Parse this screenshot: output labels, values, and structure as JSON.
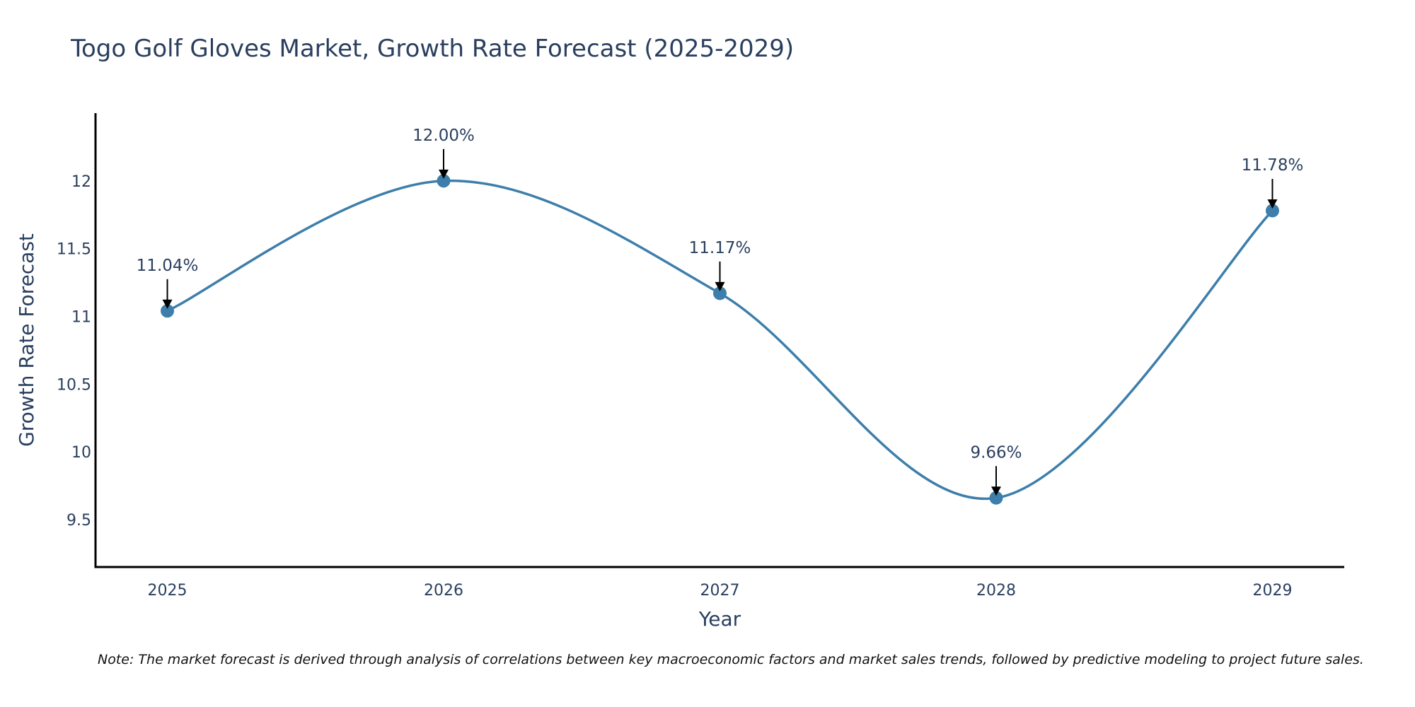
{
  "chart_data": {
    "type": "line",
    "title": "Togo Golf Gloves Market, Growth Rate Forecast (2025-2029)",
    "xlabel": "Year",
    "ylabel": "Growth Rate Forecast",
    "categories": [
      "2025",
      "2026",
      "2027",
      "2028",
      "2029"
    ],
    "series": [
      {
        "name": "Growth Rate Forecast",
        "values": [
          11.04,
          12.0,
          11.17,
          9.66,
          11.78
        ],
        "labels": [
          "11.04%",
          "12.00%",
          "11.17%",
          "9.66%",
          "11.78%"
        ],
        "color": "#3d7eab"
      }
    ],
    "yticks": [
      9.5,
      10,
      10.5,
      11,
      11.5,
      12
    ],
    "ytick_labels": [
      "9.5",
      "10",
      "10.5",
      "11",
      "11.5",
      "12"
    ],
    "ylim": [
      9.15,
      12.5
    ],
    "xlim": [
      -0.26,
      4.26
    ],
    "grid": false,
    "line_shape": "spline",
    "note": "Note: The market forecast is derived through analysis of correlations between key macroeconomic factors and market sales trends, followed by predictive modeling to project future sales."
  }
}
